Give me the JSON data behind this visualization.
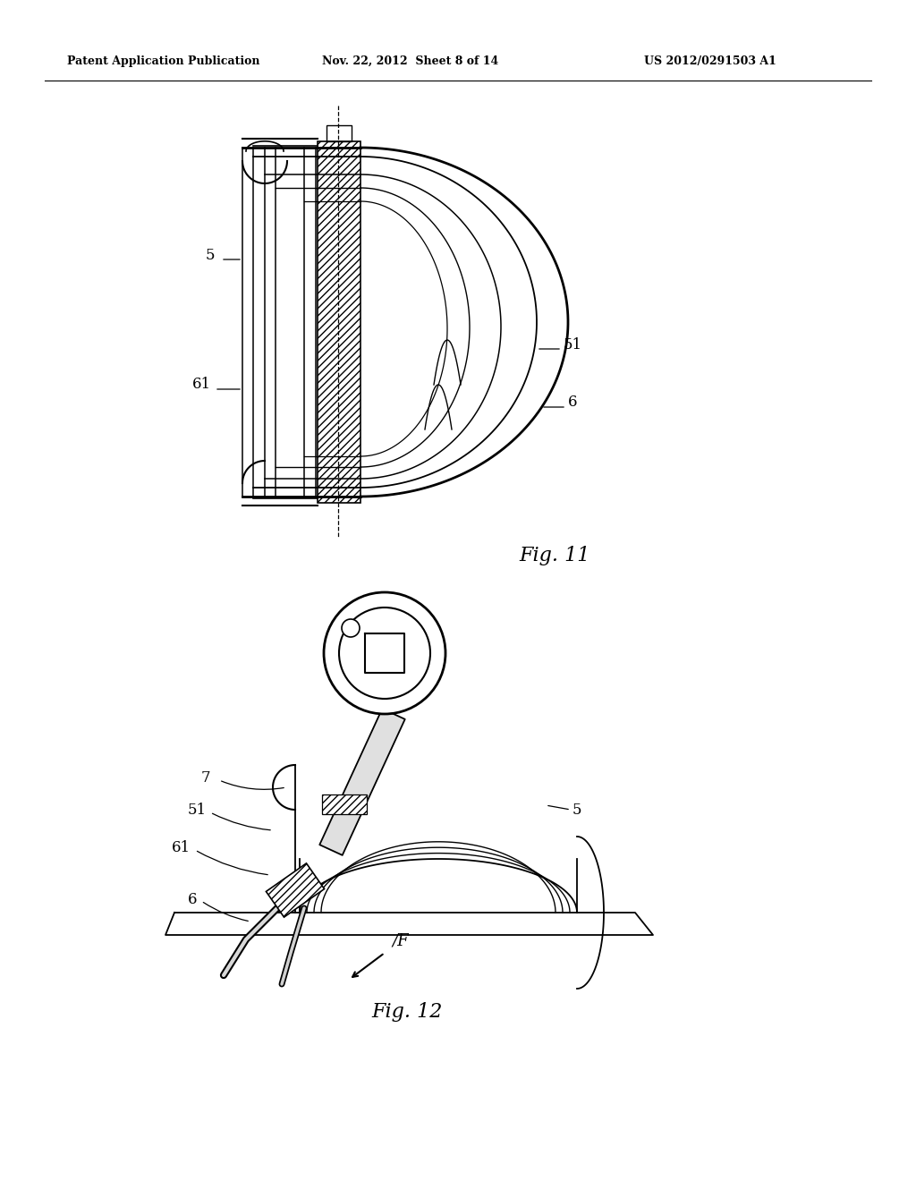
{
  "header_left": "Patent Application Publication",
  "header_mid": "Nov. 22, 2012  Sheet 8 of 14",
  "header_right": "US 2012/0291503 A1",
  "fig11_label": "Fig. 11",
  "fig12_label": "Fig. 12",
  "background": "#ffffff",
  "line_color": "#000000"
}
